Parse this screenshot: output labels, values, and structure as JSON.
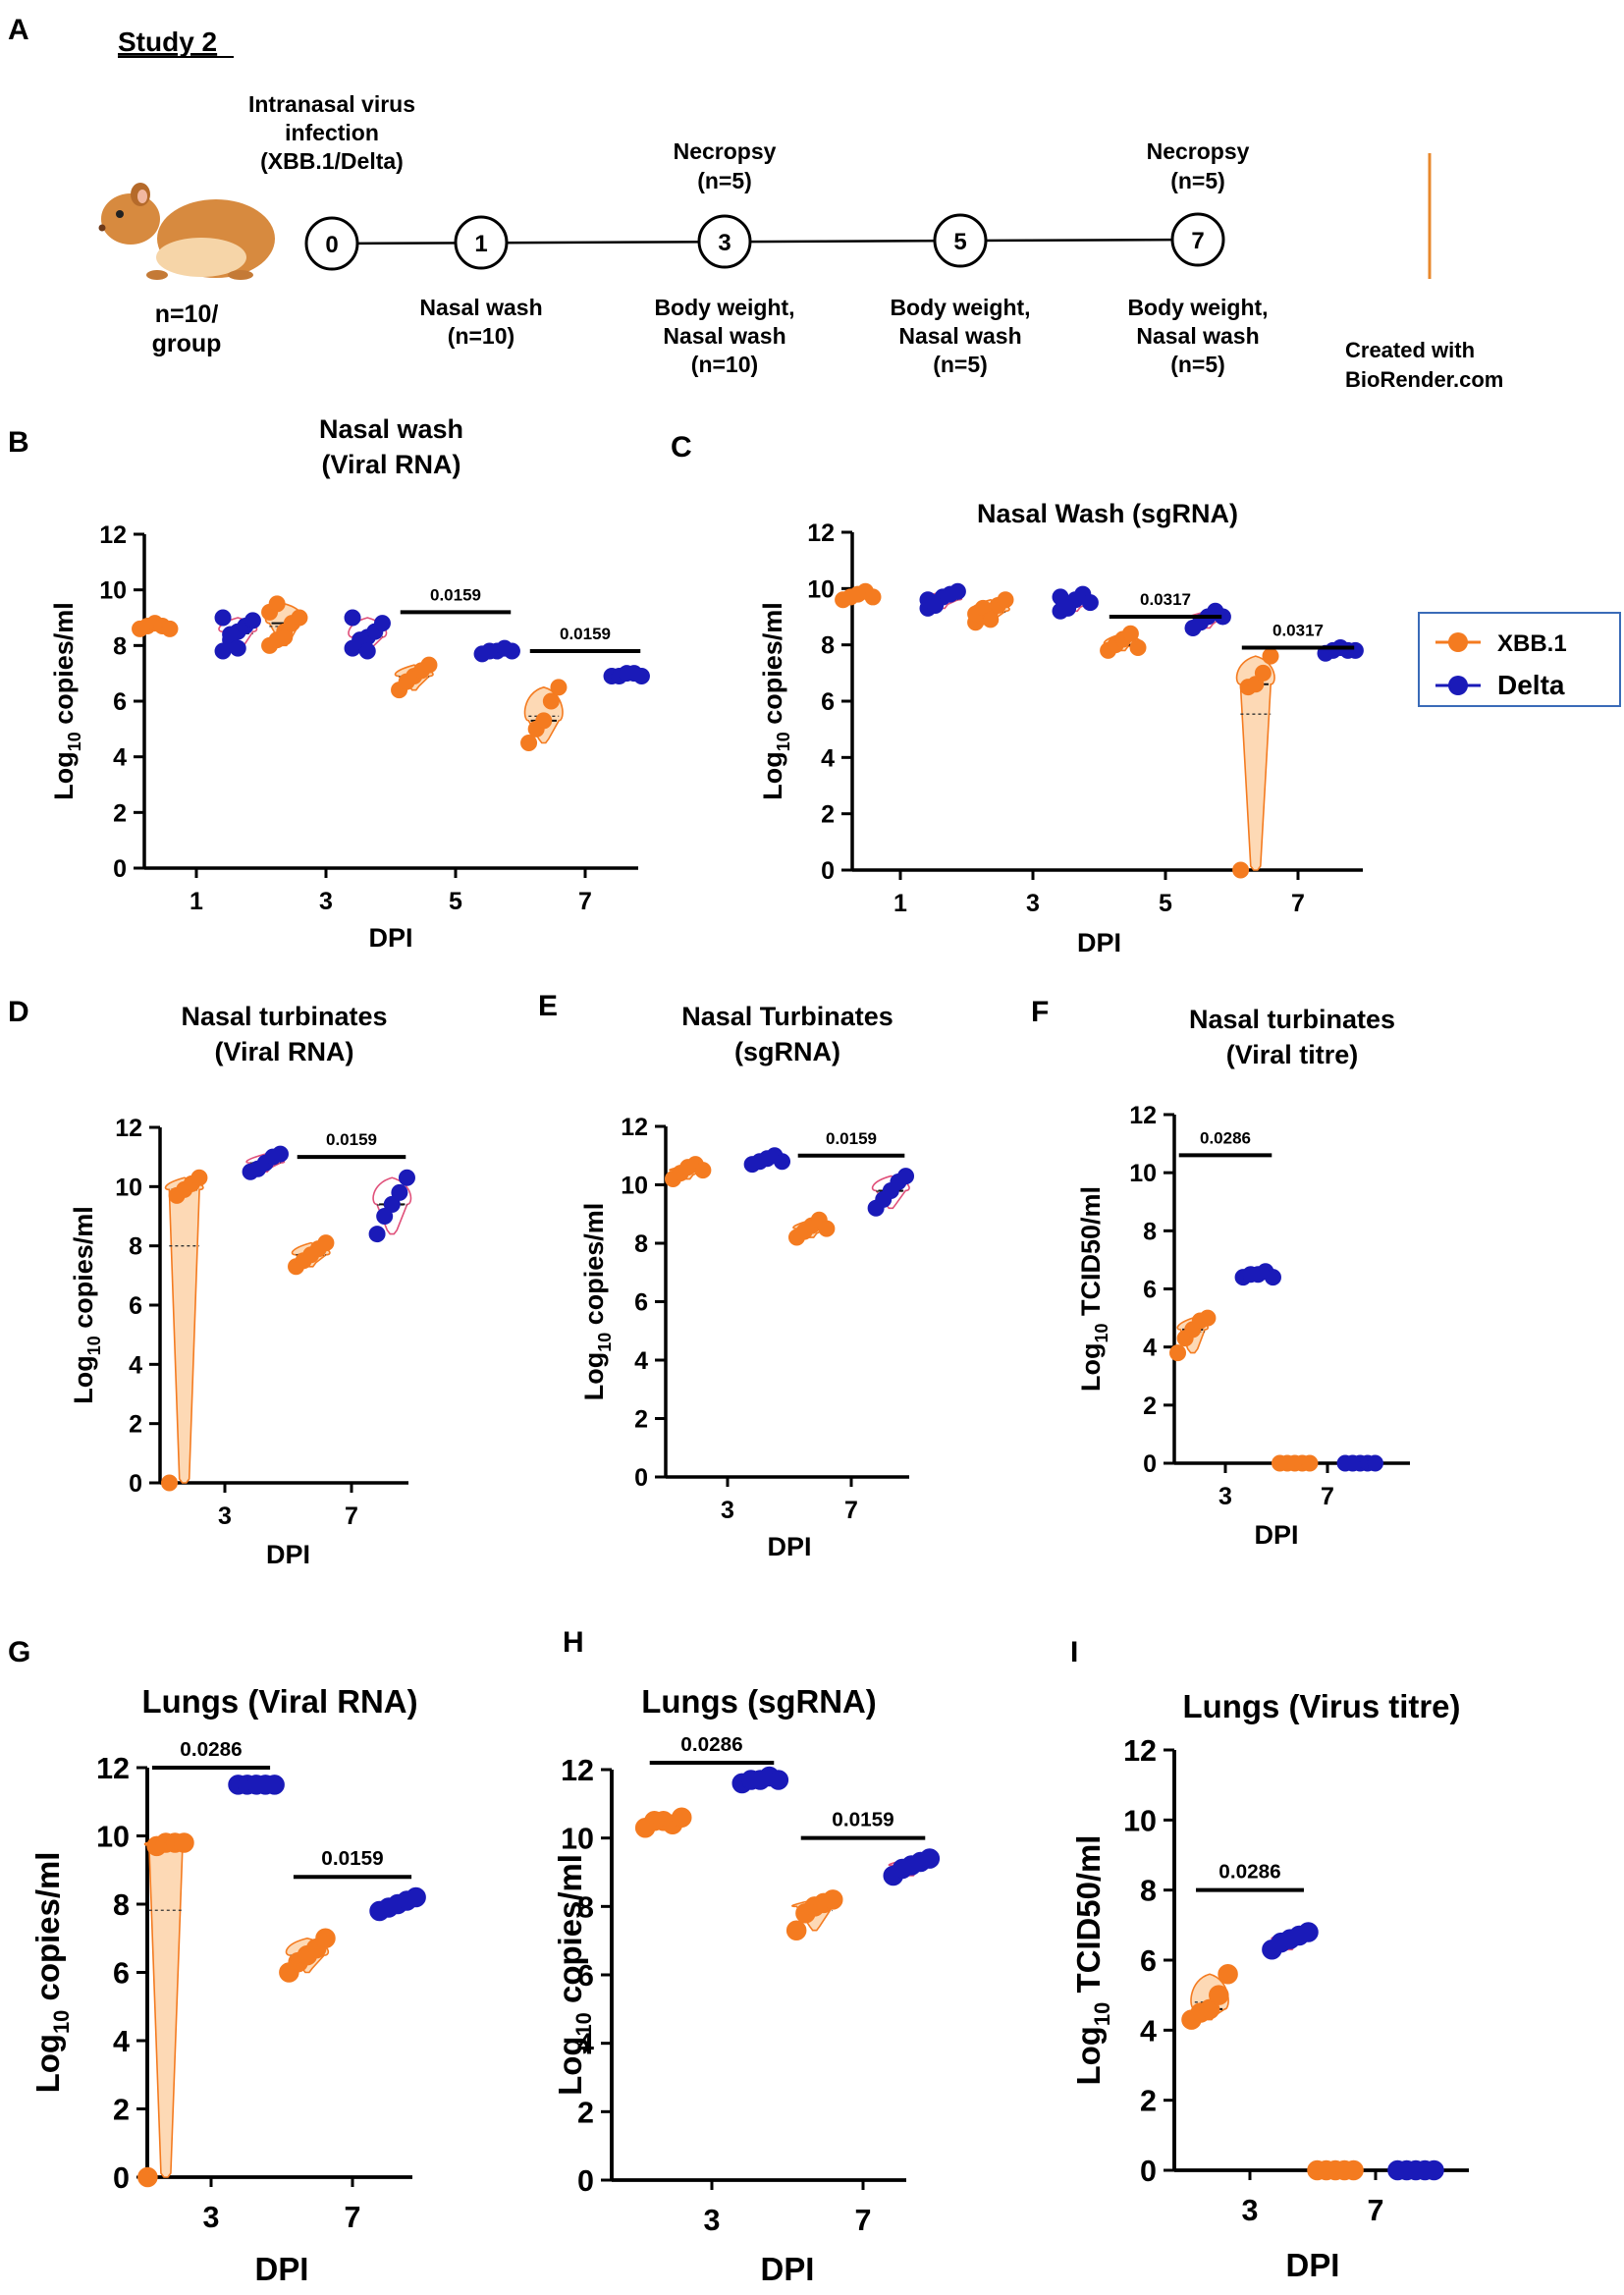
{
  "figure": {
    "panel_a": {
      "letter": "A",
      "study": "Study 2",
      "infection_lines": [
        "Intranasal virus",
        "infection",
        "(XBB.1/Delta)"
      ],
      "group_lines": [
        "n=10/",
        "group"
      ],
      "credit_lines": [
        "Created with",
        "BioRender.com"
      ],
      "timeline": [
        {
          "day": "0",
          "above": [],
          "below": []
        },
        {
          "day": "1",
          "above": [],
          "below": [
            "Nasal wash",
            "(n=10)"
          ]
        },
        {
          "day": "3",
          "above": [
            "Necropsy",
            "(n=5)"
          ],
          "below": [
            "Body weight,",
            "Nasal wash",
            "(n=10)"
          ]
        },
        {
          "day": "5",
          "above": [],
          "below": [
            "Body weight,",
            "Nasal wash",
            "(n=5)"
          ]
        },
        {
          "day": "7",
          "above": [
            "Necropsy",
            "(n=5)"
          ],
          "below": [
            "Body weight,",
            "Nasal wash",
            "(n=5)"
          ]
        }
      ]
    },
    "legend": {
      "items": [
        {
          "label": "XBB.1",
          "color": "#F47B20"
        },
        {
          "label": "Delta",
          "color": "#1A1AB8"
        }
      ]
    },
    "colors": {
      "xbb": "#F47B20",
      "delta": "#1A1AB8",
      "violin_fill": "#FDD9B5",
      "delta_violin": "#E0507A",
      "frame": "#3A6BB8"
    }
  },
  "chart_data": [
    {
      "id": "B",
      "type": "scatter",
      "title_lines": [
        "Nasal wash",
        "(Viral RNA)"
      ],
      "ylabel": "Log10 copies/ml",
      "xlabel": "DPI",
      "ylim": [
        0,
        12
      ],
      "yticks": [
        0,
        2,
        4,
        6,
        8,
        10,
        12
      ],
      "categories": [
        "1",
        "3",
        "5",
        "7"
      ],
      "series": [
        {
          "name": "XBB.1",
          "groups": [
            [
              8.6,
              8.7,
              8.8,
              8.7,
              8.6
            ],
            [
              8.0,
              8.2,
              8.5,
              8.8,
              9.0,
              9.2,
              9.5,
              8.3
            ],
            [
              6.4,
              6.7,
              6.9,
              7.1,
              7.3
            ],
            [
              4.5,
              5.0,
              5.3,
              6.0,
              6.5
            ]
          ]
        },
        {
          "name": "Delta",
          "groups": [
            [
              7.8,
              8.2,
              8.5,
              8.7,
              8.9,
              9.0,
              8.4,
              7.9
            ],
            [
              7.9,
              8.1,
              8.3,
              8.5,
              8.8,
              9.0,
              8.2,
              7.8
            ],
            [
              7.7,
              7.8,
              7.8,
              7.9,
              7.8
            ],
            [
              6.9,
              6.9,
              7.0,
              7.0,
              6.9
            ]
          ]
        }
      ],
      "comparisons": [
        {
          "index": 2,
          "p": "0.0159",
          "y": 9.2
        },
        {
          "index": 3,
          "p": "0.0159",
          "y": 7.8
        }
      ]
    },
    {
      "id": "C",
      "type": "scatter",
      "title_lines": [
        "Nasal Wash (sgRNA)"
      ],
      "ylabel": "Log10 copies/ml",
      "xlabel": "DPI",
      "ylim": [
        0,
        12
      ],
      "yticks": [
        0,
        2,
        4,
        6,
        8,
        10,
        12
      ],
      "categories": [
        "1",
        "3",
        "5",
        "7"
      ],
      "series": [
        {
          "name": "XBB.1",
          "groups": [
            [
              9.6,
              9.7,
              9.8,
              9.9,
              9.7
            ],
            [
              8.8,
              9.0,
              9.2,
              9.4,
              9.6,
              9.1,
              9.3,
              8.9
            ],
            [
              7.8,
              8.0,
              8.2,
              8.4,
              7.9
            ],
            [
              0.0,
              6.5,
              6.6,
              7.0,
              7.6
            ]
          ]
        },
        {
          "name": "Delta",
          "groups": [
            [
              9.3,
              9.5,
              9.7,
              9.8,
              9.9,
              9.6,
              9.4
            ],
            [
              9.2,
              9.4,
              9.6,
              9.8,
              9.5,
              9.7,
              9.3
            ],
            [
              8.6,
              8.8,
              9.0,
              9.2,
              9.0
            ],
            [
              7.7,
              7.8,
              7.9,
              7.8,
              7.8
            ]
          ]
        }
      ],
      "comparisons": [
        {
          "index": 2,
          "p": "0.0317",
          "y": 9.0
        },
        {
          "index": 3,
          "p": "0.0317",
          "y": 7.9
        }
      ]
    },
    {
      "id": "D",
      "type": "scatter",
      "title_lines": [
        "Nasal turbinates",
        "(Viral RNA)"
      ],
      "ylabel": "Log10 copies/ml",
      "xlabel": "DPI",
      "ylim": [
        0,
        12
      ],
      "yticks": [
        0,
        2,
        4,
        6,
        8,
        10,
        12
      ],
      "categories": [
        "3",
        "7"
      ],
      "series": [
        {
          "name": "XBB.1",
          "groups": [
            [
              0.0,
              9.7,
              9.9,
              10.1,
              10.3
            ],
            [
              7.3,
              7.5,
              7.7,
              7.9,
              8.1
            ]
          ]
        },
        {
          "name": "Delta",
          "groups": [
            [
              10.5,
              10.6,
              10.8,
              11.0,
              11.1
            ],
            [
              8.4,
              9.0,
              9.4,
              9.8,
              10.3
            ]
          ]
        }
      ],
      "comparisons": [
        {
          "index": 1,
          "p": "0.0159",
          "y": 11.0
        }
      ]
    },
    {
      "id": "E",
      "type": "scatter",
      "title_lines": [
        "Nasal Turbinates",
        "(sgRNA)"
      ],
      "ylabel": "Log10 copies/ml",
      "xlabel": "DPI",
      "ylim": [
        0,
        12
      ],
      "yticks": [
        0,
        2,
        4,
        6,
        8,
        10,
        12
      ],
      "categories": [
        "3",
        "7"
      ],
      "series": [
        {
          "name": "XBB.1",
          "groups": [
            [
              10.2,
              10.4,
              10.6,
              10.7,
              10.5
            ],
            [
              8.2,
              8.4,
              8.6,
              8.8,
              8.5
            ]
          ]
        },
        {
          "name": "Delta",
          "groups": [
            [
              10.7,
              10.8,
              10.9,
              11.0,
              10.8
            ],
            [
              9.2,
              9.5,
              9.8,
              10.1,
              10.3
            ]
          ]
        }
      ],
      "comparisons": [
        {
          "index": 1,
          "p": "0.0159",
          "y": 11.0
        }
      ]
    },
    {
      "id": "F",
      "type": "scatter",
      "title_lines": [
        "Nasal turbinates",
        "(Viral titre)"
      ],
      "ylabel": "Log10 TCID50/ml",
      "xlabel": "DPI",
      "ylim": [
        0,
        12
      ],
      "yticks": [
        0,
        2,
        4,
        6,
        8,
        10,
        12
      ],
      "categories": [
        "3",
        "7"
      ],
      "series": [
        {
          "name": "XBB.1",
          "groups": [
            [
              3.8,
              4.3,
              4.6,
              4.9,
              5.0
            ],
            [
              0.0,
              0.0,
              0.0,
              0.0,
              0.0
            ]
          ]
        },
        {
          "name": "Delta",
          "groups": [
            [
              6.4,
              6.5,
              6.5,
              6.6,
              6.4
            ],
            [
              0.0,
              0.0,
              0.0,
              0.0,
              0.0
            ]
          ]
        }
      ],
      "comparisons": [
        {
          "index": 0,
          "p": "0.0286",
          "y": 10.6
        }
      ]
    },
    {
      "id": "G",
      "type": "scatter",
      "title_lines": [
        "Lungs (Viral RNA)"
      ],
      "ylabel": "Log10 copies/ml",
      "xlabel": "DPI",
      "ylim": [
        0,
        12
      ],
      "yticks": [
        0,
        2,
        4,
        6,
        8,
        10,
        12
      ],
      "categories": [
        "3",
        "7"
      ],
      "series": [
        {
          "name": "XBB.1",
          "groups": [
            [
              0.0,
              9.7,
              9.8,
              9.8,
              9.8
            ],
            [
              6.0,
              6.3,
              6.5,
              6.7,
              7.0
            ]
          ]
        },
        {
          "name": "Delta",
          "groups": [
            [
              11.5,
              11.5,
              11.5,
              11.5,
              11.5
            ],
            [
              7.8,
              7.9,
              8.0,
              8.1,
              8.2
            ]
          ]
        }
      ],
      "comparisons": [
        {
          "index": 0,
          "p": "0.0286",
          "y": 12.0
        },
        {
          "index": 1,
          "p": "0.0159",
          "y": 8.8
        }
      ]
    },
    {
      "id": "H",
      "type": "scatter",
      "title_lines": [
        "Lungs (sgRNA)"
      ],
      "ylabel": "Log10 copies/ml",
      "xlabel": "DPI",
      "ylim": [
        0,
        12
      ],
      "yticks": [
        0,
        2,
        4,
        6,
        8,
        10,
        12
      ],
      "categories": [
        "3",
        "7"
      ],
      "series": [
        {
          "name": "XBB.1",
          "groups": [
            [
              10.3,
              10.5,
              10.5,
              10.4,
              10.6
            ],
            [
              7.3,
              7.8,
              8.0,
              8.1,
              8.2
            ]
          ]
        },
        {
          "name": "Delta",
          "groups": [
            [
              11.6,
              11.7,
              11.7,
              11.8,
              11.7
            ],
            [
              8.9,
              9.1,
              9.2,
              9.3,
              9.4
            ]
          ]
        }
      ],
      "comparisons": [
        {
          "index": 0,
          "p": "0.0286",
          "y": 12.2
        },
        {
          "index": 1,
          "p": "0.0159",
          "y": 10.0
        }
      ]
    },
    {
      "id": "I",
      "type": "scatter",
      "title_lines": [
        "Lungs (Virus titre)"
      ],
      "ylabel": "Log10 TCID50/ml",
      "xlabel": "DPI",
      "ylim": [
        0,
        12
      ],
      "yticks": [
        0,
        2,
        4,
        6,
        8,
        10,
        12
      ],
      "categories": [
        "3",
        "7"
      ],
      "series": [
        {
          "name": "XBB.1",
          "groups": [
            [
              4.3,
              4.5,
              4.6,
              5.0,
              5.6
            ],
            [
              0.0,
              0.0,
              0.0,
              0.0,
              0.0
            ]
          ]
        },
        {
          "name": "Delta",
          "groups": [
            [
              6.3,
              6.5,
              6.6,
              6.7,
              6.8
            ],
            [
              0.0,
              0.0,
              0.0,
              0.0,
              0.0
            ]
          ]
        }
      ],
      "comparisons": [
        {
          "index": 0,
          "p": "0.0286",
          "y": 8.0
        }
      ]
    }
  ]
}
